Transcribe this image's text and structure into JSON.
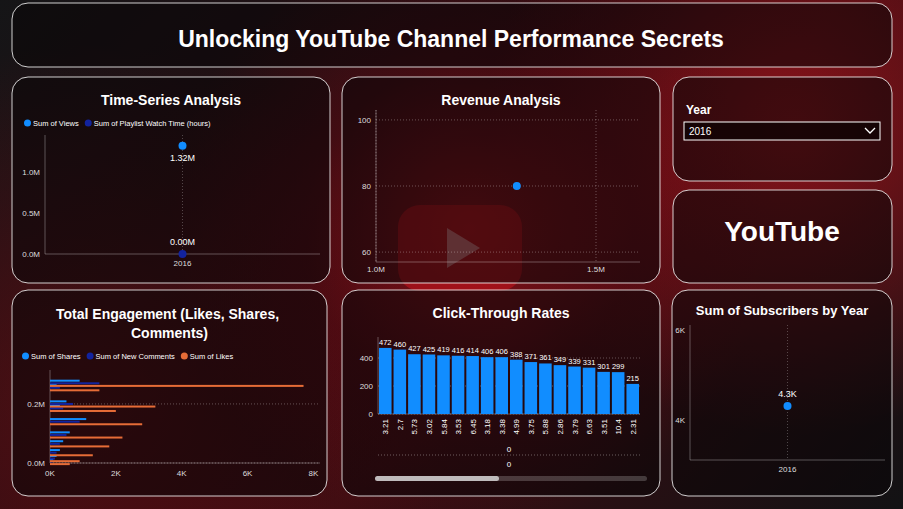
{
  "title": "Unlocking YouTube Channel Performance Secrets",
  "slicer": {
    "label": "Year",
    "value": "2016"
  },
  "logo_text": "YouTube",
  "chart_data": [
    {
      "type": "line",
      "title": "Time-Series Analysis",
      "categories": [
        "2016"
      ],
      "series": [
        {
          "name": "Sum of Views",
          "color": "#118DFF",
          "values": [
            1320000
          ],
          "value_labels": [
            "1.32M"
          ]
        },
        {
          "name": "Sum of Playlist Watch Time (hours)",
          "color": "#12239E",
          "values": [
            0
          ],
          "value_labels": [
            "0.00M"
          ]
        }
      ],
      "ylim": [
        0,
        1450000
      ],
      "yticks": [
        {
          "value": 0,
          "label": "0.0M"
        },
        {
          "value": 500000,
          "label": "0.5M"
        },
        {
          "value": 1000000,
          "label": "1.0M"
        }
      ],
      "grid": false,
      "legend": "top-left",
      "data_labels": true,
      "marker": "circle"
    },
    {
      "type": "scatter",
      "title": "Revenue Analysis",
      "x": [
        1320000
      ],
      "values": [
        80
      ],
      "color": "#118DFF",
      "xlim": [
        1000000,
        1600000
      ],
      "xticks": [
        {
          "value": 1000000,
          "label": "1.0M"
        },
        {
          "value": 1500000,
          "label": "1.5M"
        }
      ],
      "ylim": [
        57,
        103
      ],
      "yticks": [
        60,
        80,
        100
      ],
      "grid": true,
      "marker": "circle"
    },
    {
      "type": "bar",
      "title": "Total Engagement (Likes, Shares, Comments)",
      "orientation": "horizontal",
      "x": [
        270000,
        255000,
        200000,
        185000,
        140000,
        95000,
        65000,
        35000,
        15000,
        5000
      ],
      "series": [
        {
          "name": "Sum of Shares",
          "color": "#118DFF",
          "values": [
            900,
            200,
            500,
            300,
            1100,
            600,
            400,
            300,
            200,
            100
          ]
        },
        {
          "name": "Sum of New Comments",
          "color": "#12239E",
          "values": [
            1500,
            300,
            700,
            400,
            900,
            500,
            300,
            200,
            150,
            80
          ]
        },
        {
          "name": "Sum of Likes",
          "color": "#E66C37",
          "values": [
            7700,
            1500,
            3200,
            2000,
            2800,
            2200,
            1800,
            1300,
            900,
            600
          ]
        }
      ],
      "xlim": [
        0,
        315000
      ],
      "xticks": [
        {
          "value": 0,
          "label": "0.0M"
        },
        {
          "value": 200000,
          "label": "0.2M"
        }
      ],
      "ylim": [
        0,
        8200
      ],
      "yticks": [
        {
          "value": 0,
          "label": "0K"
        },
        {
          "value": 2000,
          "label": "2K"
        },
        {
          "value": 4000,
          "label": "4K"
        },
        {
          "value": 6000,
          "label": "6K"
        },
        {
          "value": 8000,
          "label": "8K"
        }
      ],
      "grid": true,
      "legend": "top-left"
    },
    {
      "type": "bar",
      "title": "Click-Through Rates",
      "categories": [
        "3.21",
        "2.7",
        "5.73",
        "3.02",
        "5.84",
        "3.53",
        "6.45",
        "3.18",
        "3.38",
        "4.99",
        "3.75",
        "5.88",
        "2.86",
        "3.79",
        "6.63",
        "3.51",
        "10.4",
        "2.31"
      ],
      "values": [
        472,
        460,
        427,
        425,
        419,
        416,
        414,
        406,
        406,
        388,
        371,
        361,
        349,
        339,
        331,
        301,
        299,
        215
      ],
      "color": "#118DFF",
      "ylim": [
        0,
        550
      ],
      "yticks": [
        0,
        200,
        400
      ],
      "grid": true,
      "data_labels": true,
      "annotations": [
        "0",
        "0"
      ]
    },
    {
      "type": "line",
      "title": "Sum of Subscribers by Year",
      "categories": [
        "2016"
      ],
      "series": [
        {
          "name": "Sum of Subscribers",
          "color": "#118DFF",
          "values": [
            4300
          ],
          "value_labels": [
            "4.3K"
          ]
        }
      ],
      "ylim": [
        3100,
        6100
      ],
      "yticks": [
        {
          "value": 4000,
          "label": "4K"
        },
        {
          "value": 6000,
          "label": "6K"
        }
      ],
      "grid": false,
      "data_labels": true,
      "marker": "circle"
    }
  ]
}
